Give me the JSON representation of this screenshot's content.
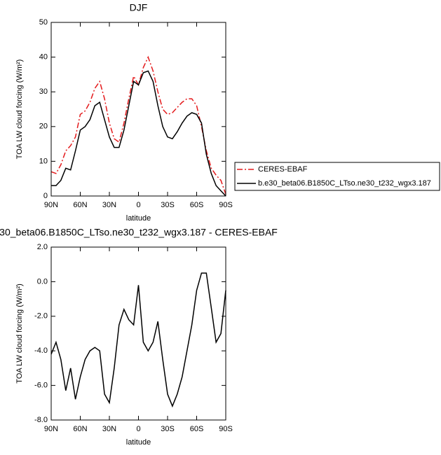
{
  "chart_data": [
    {
      "type": "line",
      "title": "DJF",
      "xlabel": "latitude",
      "ylabel": "TOA LW cloud forcing (W/m²)",
      "x": [
        90,
        85,
        80,
        75,
        70,
        65,
        60,
        55,
        50,
        45,
        40,
        35,
        30,
        25,
        20,
        15,
        10,
        5,
        0,
        -5,
        -10,
        -15,
        -20,
        -25,
        -30,
        -35,
        -40,
        -45,
        -50,
        -55,
        -60,
        -65,
        -70,
        -75,
        -80,
        -85,
        -90
      ],
      "xlim": [
        90,
        -90
      ],
      "xticks": [
        {
          "value": 90,
          "label": "90N"
        },
        {
          "value": 60,
          "label": "60N"
        },
        {
          "value": 30,
          "label": "30N"
        },
        0,
        {
          "value": -30,
          "label": "30S"
        },
        {
          "value": -60,
          "label": "60S"
        },
        {
          "value": -90,
          "label": "90S"
        }
      ],
      "ylim": [
        0,
        50
      ],
      "yticks": [
        0,
        10,
        20,
        30,
        40,
        50
      ],
      "legend": "right",
      "series": [
        {
          "name": "CERES-EBAF",
          "color": "#e41a1c",
          "line_style": "dashdot",
          "values": [
            7,
            6.5,
            9,
            13,
            14.5,
            17,
            23.5,
            24.5,
            27,
            31,
            33,
            28,
            21,
            16.5,
            15.5,
            21,
            28,
            34.5,
            32,
            37,
            40,
            36,
            30,
            25,
            23.5,
            24,
            25.5,
            27,
            28,
            28,
            26,
            20,
            13,
            8,
            6,
            4.5,
            0.5
          ]
        },
        {
          "name": "b.e30_beta06.B1850C_LTso.ne30_t232_wgx3.187",
          "color": "#000000",
          "line_style": "solid",
          "values": [
            3,
            3,
            4.5,
            8,
            7.5,
            13,
            19,
            20,
            22,
            26,
            27,
            22,
            17,
            14,
            14,
            19,
            26,
            33,
            32,
            35.5,
            36,
            33,
            26,
            20,
            17,
            16.5,
            18.5,
            21,
            23,
            24,
            23.5,
            21,
            12,
            6.5,
            3,
            1.5,
            0
          ]
        }
      ]
    },
    {
      "type": "line",
      "title": "30_beta06.B1850C_LTso.ne30_t232_wgx3.187 - CERES-EBAF",
      "xlabel": "latitude",
      "ylabel": "TOA LW cloud forcing (W/m²)",
      "x": [
        90,
        85,
        80,
        75,
        70,
        65,
        60,
        55,
        50,
        45,
        40,
        35,
        30,
        25,
        20,
        15,
        10,
        5,
        0,
        -5,
        -10,
        -15,
        -20,
        -25,
        -30,
        -35,
        -40,
        -45,
        -50,
        -55,
        -60,
        -65,
        -70,
        -75,
        -80,
        -85,
        -90
      ],
      "xlim": [
        90,
        -90
      ],
      "xticks": [
        {
          "value": 90,
          "label": "90N"
        },
        {
          "value": 60,
          "label": "60N"
        },
        {
          "value": 30,
          "label": "30N"
        },
        0,
        {
          "value": -30,
          "label": "30S"
        },
        {
          "value": -60,
          "label": "60S"
        },
        {
          "value": -90,
          "label": "90S"
        }
      ],
      "ylim": [
        -8,
        2
      ],
      "yticks": [
        {
          "value": -8,
          "label": "-8.0"
        },
        {
          "value": -6,
          "label": "-6.0"
        },
        {
          "value": -4,
          "label": "-4.0"
        },
        {
          "value": -2,
          "label": "-2.0"
        },
        {
          "value": 0,
          "label": "0.0"
        },
        {
          "value": 2,
          "label": "2.0"
        }
      ],
      "series": [
        {
          "color": "#000000",
          "line_style": "solid",
          "values": [
            -4.2,
            -3.5,
            -4.5,
            -6.3,
            -5.0,
            -6.8,
            -5.5,
            -4.5,
            -4.0,
            -3.8,
            -4.0,
            -6.5,
            -7.0,
            -5.0,
            -2.5,
            -1.6,
            -2.2,
            -2.5,
            -0.2,
            -3.5,
            -4.0,
            -3.5,
            -2.3,
            -4.5,
            -6.5,
            -7.2,
            -6.5,
            -5.5,
            -4.0,
            -2.5,
            -0.5,
            0.5,
            0.5,
            -1.5,
            -3.5,
            -3.0,
            -0.5
          ]
        }
      ]
    }
  ]
}
